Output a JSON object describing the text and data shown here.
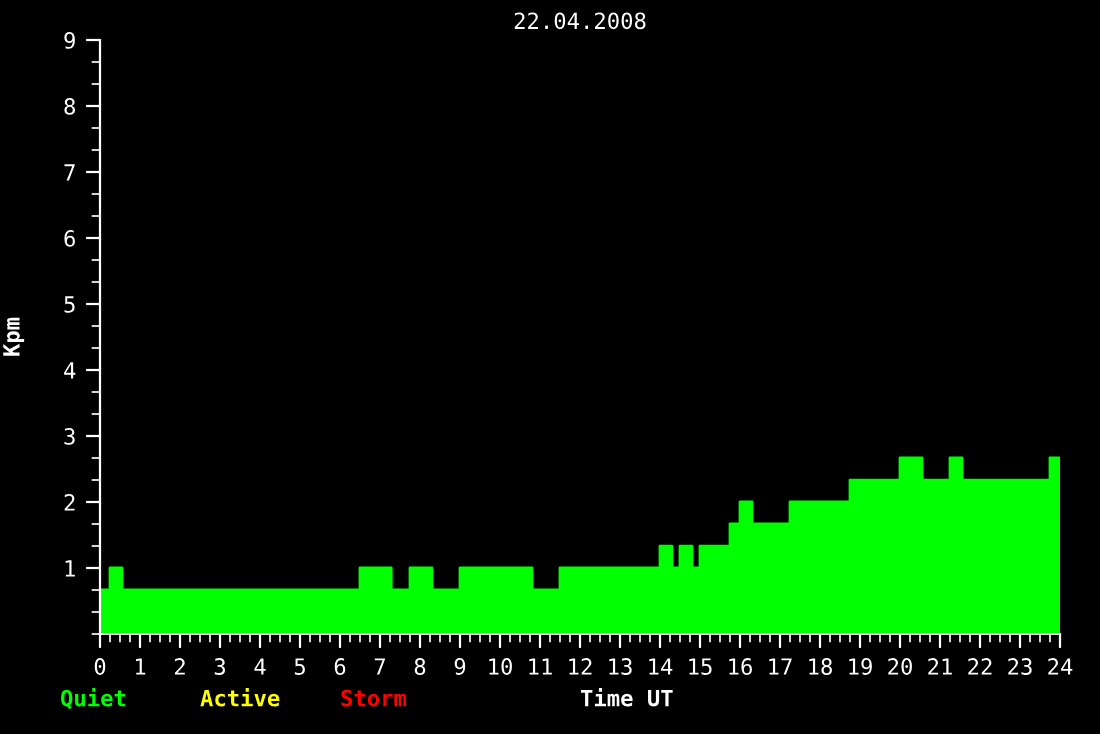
{
  "chart_data": {
    "type": "area",
    "title": "22.04.2008",
    "xlabel": "Time UT",
    "ylabel": "Kpm",
    "x": [
      0,
      0.25,
      0.25,
      0.55,
      0.55,
      6.5,
      6.5,
      7.28,
      7.28,
      7.75,
      7.75,
      8.3,
      8.3,
      9.0,
      9.0,
      10.8,
      10.8,
      11.5,
      11.5,
      14.0,
      14.0,
      14.3,
      14.3,
      14.5,
      14.5,
      14.8,
      14.8,
      15.0,
      15.0,
      15.75,
      15.75,
      16.0,
      16.0,
      16.3,
      16.3,
      17.25,
      17.25,
      18.75,
      18.75,
      20.0,
      20.0,
      20.55,
      20.55,
      21.25,
      21.25,
      21.55,
      21.55,
      23.75,
      23.75,
      24.0
    ],
    "series": [
      {
        "name": "Quiet",
        "color": "#00ff00",
        "values": [
          0.67,
          0.67,
          1,
          1,
          0.67,
          0.67,
          1,
          1,
          0.67,
          0.67,
          1,
          1,
          0.67,
          0.67,
          1,
          1,
          0.67,
          0.67,
          1,
          1,
          1.33,
          1.33,
          1,
          1,
          1.33,
          1.33,
          1,
          1,
          1.33,
          1.33,
          1.67,
          1.67,
          2,
          2,
          1.67,
          1.67,
          2,
          2,
          2.33,
          2.33,
          2.67,
          2.67,
          2.33,
          2.33,
          2.67,
          2.67,
          2.33,
          2.33,
          2.67,
          2.67
        ]
      },
      {
        "name": "Active",
        "color": "#ffff00",
        "values": [
          null,
          null,
          null,
          null,
          null,
          null,
          null,
          null,
          null,
          null,
          null,
          null,
          null,
          null,
          null,
          null,
          null,
          null,
          null,
          null,
          null,
          null,
          null,
          null,
          null,
          null,
          null,
          null,
          null,
          null,
          null,
          null,
          null,
          null,
          null,
          null,
          null,
          null,
          null,
          null,
          null,
          null,
          null,
          null,
          null,
          null,
          null,
          null,
          null,
          null
        ]
      },
      {
        "name": "Storm",
        "color": "#ff0000",
        "values": [
          null,
          null,
          null,
          null,
          null,
          null,
          null,
          null,
          null,
          null,
          null,
          null,
          null,
          null,
          null,
          null,
          null,
          null,
          null,
          null,
          null,
          null,
          null,
          null,
          null,
          null,
          null,
          null,
          null,
          null,
          null,
          null,
          null,
          null,
          null,
          null,
          null,
          null,
          null,
          null,
          null,
          null,
          null,
          null,
          null,
          null,
          null,
          null,
          null,
          null
        ]
      }
    ],
    "xlim": [
      0,
      24
    ],
    "ylim": [
      0,
      9
    ],
    "xticks": [
      0,
      1,
      2,
      3,
      4,
      5,
      6,
      7,
      8,
      9,
      10,
      11,
      12,
      13,
      14,
      15,
      16,
      17,
      18,
      19,
      20,
      21,
      22,
      23,
      24
    ],
    "yticks": [
      1,
      2,
      3,
      4,
      5,
      6,
      7,
      8,
      9
    ],
    "grid": false
  }
}
